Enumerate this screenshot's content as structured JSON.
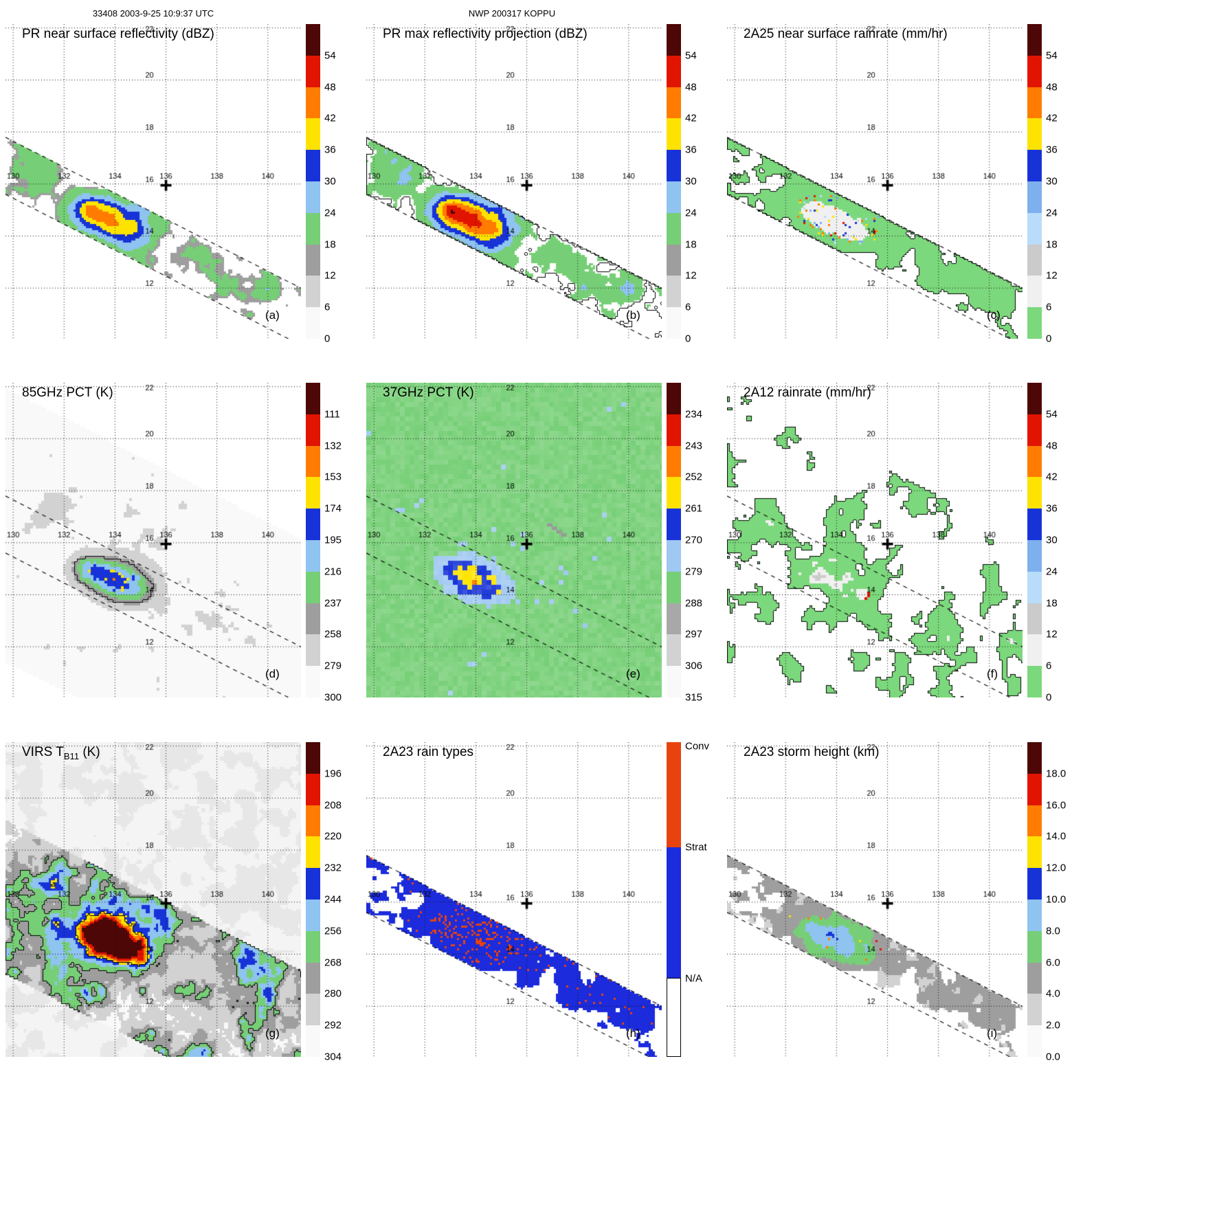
{
  "header": {
    "timestamp": "33408 2003-9-25 10:9:37 UTC",
    "title": "NWP 200317 KOPPU"
  },
  "axes": {
    "lon_ticks": [
      130,
      132,
      134,
      136,
      138,
      140
    ],
    "lat_ticks": [
      12,
      14,
      16,
      18,
      20,
      22
    ],
    "lon_range": [
      129.7,
      141.3
    ],
    "lat_range": [
      10.05,
      22.15
    ],
    "cross_marker": {
      "lon": 136.0,
      "lat": 16.0
    }
  },
  "scales": {
    "dbz": {
      "display": "reversed",
      "bounds": [
        6,
        12,
        18,
        24,
        30,
        36,
        42,
        48,
        54
      ],
      "colors_low_to_high": [
        "#f9f9f9",
        "#d2d2d2",
        "#9e9e9e",
        "#76cf76",
        "#8fc3f0",
        "#1733d8",
        "#ffe300",
        "#ff7c00",
        "#e11400",
        "#4d0706"
      ]
    },
    "rain": {
      "display": "reversed",
      "bounds": [
        6,
        12,
        18,
        24,
        30,
        36,
        42,
        48,
        54
      ],
      "colors_low_to_high": [
        "#7cd87c",
        "#f0f0f0",
        "#cbcbcb",
        "#b9dcfa",
        "#7fb0ee",
        "#1733d8",
        "#ffe300",
        "#ff7c00",
        "#e11400",
        "#4d0706"
      ]
    },
    "pct85": {
      "display": "as-is",
      "bounds": [
        111,
        132,
        153,
        174,
        195,
        216,
        237,
        258,
        279
      ],
      "colors_low_to_high": [
        "#4d0706",
        "#e11400",
        "#ff7c00",
        "#ffe300",
        "#1733d8",
        "#8fc3f0",
        "#76cf76",
        "#9e9e9e",
        "#d2d2d2",
        "#f9f9f9"
      ]
    },
    "pct37": {
      "display": "as-is",
      "bounds": [
        234,
        243,
        252,
        261,
        270,
        279,
        288,
        297,
        306
      ],
      "colors_low_to_high": [
        "#4d0706",
        "#e11400",
        "#ff7c00",
        "#ffe300",
        "#1733d8",
        "#9fc8f2",
        "#76cf76",
        "#a8a8a8",
        "#d2d2d2",
        "#f9f9f9"
      ]
    },
    "virs": {
      "display": "as-is",
      "bounds": [
        196,
        208,
        220,
        232,
        244,
        256,
        268,
        280,
        292
      ],
      "colors_low_to_high": [
        "#4d0706",
        "#e11400",
        "#ff7c00",
        "#ffe300",
        "#1733d8",
        "#8fc3f0",
        "#76cf76",
        "#9e9e9e",
        "#d2d2d2",
        "#f9f9f9"
      ]
    },
    "height": {
      "display": "reversed",
      "bounds": [
        2,
        4,
        6,
        8,
        10,
        12,
        14,
        16,
        18
      ],
      "colors_low_to_high": [
        "#f9f9f9",
        "#d2d2d2",
        "#9e9e9e",
        "#76cf76",
        "#8fc3f0",
        "#1733d8",
        "#ffe300",
        "#ff7c00",
        "#e11400",
        "#4d0706"
      ]
    },
    "types": {
      "colors": {
        "conv": "#e8430e",
        "strat": "#1c2bdc",
        "na": "#ffffff"
      },
      "fractions": [
        0.335,
        0.415,
        0.25
      ]
    }
  },
  "chart_data": {
    "type": "heatmap",
    "description": "TRMM multi-sensor overpass (orbit 33408) of NW Pacific typhoon 200317 KOPPU; nine lat/lon map panels with colorbars, storm best-track center marked by cross at 136E 16N, convective core near 134E 14.7N inside the PR swath.",
    "panels": [
      {
        "id": "a",
        "letter": "(a)",
        "title": "PR near surface reflectivity (dBZ)",
        "title_sub": "",
        "title_suffix": "",
        "field": "pr_z",
        "swath": "narrow",
        "cell": 3,
        "scale": "dbz",
        "cbar": {
          "labels": [
            "54",
            "48",
            "42",
            "36",
            "30",
            "24",
            "18",
            "12",
            "6",
            "0"
          ]
        }
      },
      {
        "id": "b",
        "letter": "(b)",
        "title": "PR max reflectivity projection (dBZ)",
        "title_sub": "",
        "title_suffix": "",
        "field": "pr_zmax",
        "swath": "narrow",
        "cell": 3,
        "scale": "dbz",
        "cbar": {
          "labels": [
            "54",
            "48",
            "42",
            "36",
            "30",
            "24",
            "18",
            "12",
            "6",
            "0"
          ]
        }
      },
      {
        "id": "c",
        "letter": "(c)",
        "title": "2A25 near surface rainrate (mm/hr)",
        "title_sub": "",
        "title_suffix": "",
        "field": "rr",
        "swath": "narrow",
        "cell": 3,
        "scale": "rain",
        "cbar": {
          "labels": [
            "54",
            "48",
            "42",
            "36",
            "30",
            "24",
            "18",
            "12",
            "6",
            "0"
          ]
        }
      },
      {
        "id": "d",
        "letter": "(d)",
        "title": "85GHz PCT (K)",
        "title_sub": "",
        "title_suffix": "",
        "field": "pct85",
        "swath": "wide",
        "cell": 4,
        "scale": "pct85",
        "cbar": {
          "labels": [
            "111",
            "132",
            "153",
            "174",
            "195",
            "216",
            "237",
            "258",
            "279",
            "300"
          ]
        }
      },
      {
        "id": "e",
        "letter": "(e)",
        "title": "37GHz PCT (K)",
        "title_sub": "",
        "title_suffix": "",
        "field": "pct37",
        "swath": "full",
        "cell": 7,
        "scale": "pct37",
        "cbar": {
          "labels": [
            "234",
            "243",
            "252",
            "261",
            "270",
            "279",
            "288",
            "297",
            "306",
            "315"
          ]
        }
      },
      {
        "id": "f",
        "letter": "(f)",
        "title": "2A12 rainrate (mm/hr)",
        "title_sub": "",
        "title_suffix": "",
        "field": "rr2",
        "swath": "wide",
        "cell": 4,
        "scale": "rain",
        "cbar": {
          "labels": [
            "54",
            "48",
            "42",
            "36",
            "30",
            "24",
            "18",
            "12",
            "6",
            "0"
          ]
        }
      },
      {
        "id": "g",
        "letter": "(g)",
        "title": "VIRS T",
        "title_sub": "B11",
        "title_suffix": " (K)",
        "field": "virs",
        "swath": "virs",
        "cell": 3,
        "scale": "virs",
        "cbar": {
          "labels": [
            "196",
            "208",
            "220",
            "232",
            "244",
            "256",
            "268",
            "280",
            "292",
            "304"
          ]
        }
      },
      {
        "id": "h",
        "letter": "(h)",
        "title": "2A23 rain types",
        "title_sub": "",
        "title_suffix": "",
        "field": "types",
        "swath": "narrow",
        "cell": 3,
        "scale": "types",
        "cbar": {
          "labels": [
            "Conv",
            "Strat",
            "N/A"
          ]
        }
      },
      {
        "id": "i",
        "letter": "(i)",
        "title": "2A23 storm height (km)",
        "title_sub": "",
        "title_suffix": "",
        "field": "height",
        "swath": "narrow",
        "cell": 3,
        "scale": "height",
        "cbar": {
          "labels": [
            "18.0",
            "16.0",
            "14.0",
            "12.0",
            "10.0",
            "8.0",
            "6.0",
            "4.0",
            "2.0",
            "0.0"
          ]
        }
      }
    ]
  }
}
